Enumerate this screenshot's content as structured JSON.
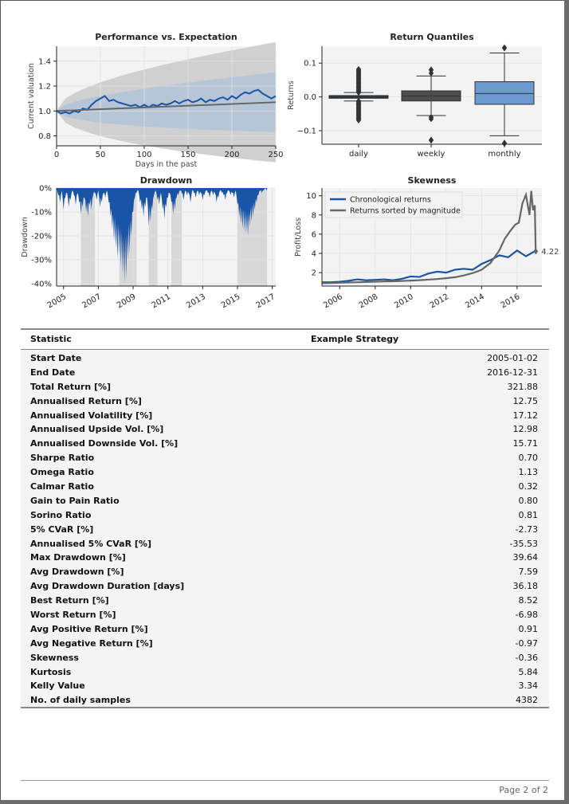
{
  "chart_data": [
    {
      "type": "line",
      "title": "Performance vs. Expectation",
      "xlabel": "Days in the past",
      "ylabel": "Current valuation",
      "xlim": [
        0,
        250
      ],
      "ylim": [
        0.72,
        1.52
      ],
      "x_ticks": [
        "0",
        "50",
        "100",
        "150",
        "200",
        "250"
      ],
      "y_ticks": [
        "0.8",
        "1.0",
        "1.2",
        "1.4"
      ],
      "series": [
        {
          "values_x": [
            0,
            5,
            10,
            15,
            20,
            25,
            30,
            35,
            40,
            45,
            50,
            55,
            60,
            65,
            70,
            75,
            80,
            85,
            90,
            95,
            100,
            105,
            110,
            115,
            120,
            125,
            130,
            135,
            140,
            145,
            150,
            155,
            160,
            165,
            170,
            175,
            180,
            185,
            190,
            195,
            200,
            205,
            210,
            215,
            220,
            225,
            230,
            235,
            240,
            245,
            250
          ],
          "values": [
            1.0,
            0.98,
            0.99,
            0.98,
            1.0,
            0.99,
            1.02,
            1.01,
            1.05,
            1.08,
            1.1,
            1.12,
            1.08,
            1.09,
            1.07,
            1.06,
            1.05,
            1.04,
            1.05,
            1.03,
            1.05,
            1.03,
            1.05,
            1.04,
            1.06,
            1.05,
            1.06,
            1.08,
            1.06,
            1.08,
            1.09,
            1.07,
            1.08,
            1.1,
            1.07,
            1.09,
            1.08,
            1.1,
            1.11,
            1.09,
            1.12,
            1.1,
            1.13,
            1.15,
            1.14,
            1.16,
            1.17,
            1.14,
            1.12,
            1.1,
            1.12
          ]
        },
        {
          "values_x": [
            0,
            250
          ],
          "values": [
            1.0,
            1.07
          ]
        }
      ],
      "grid": true
    },
    {
      "type": "box",
      "title": "Return Quantiles",
      "ylabel": "Returns",
      "categories": [
        "daily",
        "weekly",
        "monthly"
      ],
      "y_ticks": [
        "−0.1",
        "0.0",
        "0.1"
      ],
      "ylim": [
        -0.14,
        0.15
      ],
      "boxes": [
        {
          "whisker_low": -0.012,
          "q1": -0.004,
          "median": 0.0,
          "q3": 0.004,
          "whisker_high": 0.013,
          "outliers": [
            0.085,
            -0.07
          ],
          "color": "#2b3a55"
        },
        {
          "whisker_low": -0.055,
          "q1": -0.012,
          "median": 0.003,
          "q3": 0.018,
          "whisker_high": 0.062,
          "outliers": [
            0.08,
            -0.128
          ],
          "color": "#4d4d4d"
        },
        {
          "whisker_low": -0.115,
          "q1": -0.022,
          "median": 0.01,
          "q3": 0.045,
          "whisker_high": 0.13,
          "outliers": [
            0.145,
            -0.137
          ],
          "color": "#6a9bd0"
        }
      ],
      "grid": true
    },
    {
      "type": "area",
      "title": "Drawdown",
      "ylabel": "Drawdown",
      "x_ticks": [
        "2005",
        "2007",
        "2009",
        "2011",
        "2013",
        "2015",
        "2017"
      ],
      "y_ticks": [
        "0%",
        "-10%",
        "-20%",
        "-30%",
        "-40%"
      ],
      "xlim": [
        2005,
        2017.6
      ],
      "ylim": [
        -41,
        0
      ],
      "shaded_periods": [
        [
          2006.4,
          2007.2
        ],
        [
          2008.6,
          2009.6
        ],
        [
          2010.3,
          2010.8
        ],
        [
          2011.6,
          2012.2
        ],
        [
          2015.4,
          2017.1
        ]
      ],
      "x": [
        2005,
        2005.1,
        2005.2,
        2005.3,
        2005.4,
        2005.5,
        2005.6,
        2005.7,
        2005.8,
        2005.9,
        2006,
        2006.1,
        2006.2,
        2006.3,
        2006.4,
        2006.5,
        2006.6,
        2006.7,
        2006.8,
        2006.9,
        2007,
        2007.1,
        2007.2,
        2007.3,
        2007.4,
        2007.5,
        2007.6,
        2007.7,
        2007.8,
        2007.9,
        2008,
        2008.1,
        2008.2,
        2008.3,
        2008.4,
        2008.5,
        2008.6,
        2008.7,
        2008.8,
        2008.9,
        2009,
        2009.1,
        2009.2,
        2009.3,
        2009.4,
        2009.5,
        2009.6,
        2009.7,
        2009.8,
        2009.9,
        2010,
        2010.1,
        2010.2,
        2010.3,
        2010.4,
        2010.5,
        2010.6,
        2010.7,
        2010.8,
        2010.9,
        2011,
        2011.1,
        2011.2,
        2011.3,
        2011.4,
        2011.5,
        2011.6,
        2011.7,
        2011.8,
        2011.9,
        2012,
        2012.1,
        2012.2,
        2012.3,
        2012.4,
        2012.5,
        2012.6,
        2012.7,
        2012.8,
        2012.9,
        2013,
        2013.1,
        2013.2,
        2013.3,
        2013.4,
        2013.5,
        2013.6,
        2013.7,
        2013.8,
        2013.9,
        2014,
        2014.1,
        2014.2,
        2014.3,
        2014.4,
        2014.5,
        2014.6,
        2014.7,
        2014.8,
        2014.9,
        2015,
        2015.1,
        2015.2,
        2015.3,
        2015.4,
        2015.5,
        2015.6,
        2015.7,
        2015.8,
        2015.9,
        2016,
        2016.1,
        2016.2,
        2016.3,
        2016.4,
        2016.5,
        2016.6,
        2016.7,
        2016.8,
        2016.9,
        2017,
        2017.1
      ],
      "values": [
        0,
        -3,
        -6,
        -1,
        -9,
        -4,
        -2,
        -8,
        -5,
        -1,
        -3,
        -7,
        -2,
        -6,
        -11,
        -8,
        -4,
        -10,
        -12,
        -7,
        -9,
        -3,
        -2,
        -5,
        -1,
        -8,
        -6,
        -2,
        -4,
        -1,
        -6,
        -12,
        -17,
        -22,
        -25,
        -30,
        -28,
        -33,
        -36,
        -40,
        -38,
        -30,
        -27,
        -20,
        -10,
        -4,
        -2,
        -1,
        -6,
        -9,
        -12,
        -8,
        -4,
        -16,
        -14,
        -9,
        -3,
        -1,
        -5,
        -7,
        -2,
        -9,
        -13,
        -8,
        -4,
        -2,
        -6,
        -11,
        -9,
        -4,
        -3,
        -1,
        -2,
        -5,
        -1,
        -3,
        -2,
        -6,
        -1,
        -2,
        -4,
        -1,
        -3,
        -2,
        -5,
        -3,
        -1,
        -2,
        -4,
        -1,
        -3,
        -2,
        -6,
        -4,
        -1,
        -2,
        -3,
        -5,
        -2,
        -1,
        -3,
        -2,
        -4,
        -1,
        -7,
        -12,
        -15,
        -17,
        -18,
        -19,
        -20,
        -16,
        -14,
        -12,
        -9,
        -6,
        -3,
        -1,
        -2,
        -1,
        0,
        -1
      ]
    },
    {
      "type": "line",
      "title": "Skewness",
      "ylabel": "Profit/Loss",
      "x_ticks": [
        "2006",
        "2008",
        "2010",
        "2012",
        "2014",
        "2016"
      ],
      "y_ticks": [
        "2",
        "4",
        "6",
        "8",
        "10"
      ],
      "xlim": [
        2005,
        2017.4
      ],
      "ylim": [
        0.6,
        10.8
      ],
      "legend": "top-left",
      "annotation": "4.22",
      "series": [
        {
          "name": "Chronological returns",
          "color": "#1a54a6",
          "x": [
            2005,
            2005.5,
            2006,
            2006.5,
            2007,
            2007.5,
            2008,
            2008.5,
            2009,
            2009.5,
            2010,
            2010.5,
            2011,
            2011.5,
            2012,
            2012.5,
            2013,
            2013.5,
            2014,
            2014.5,
            2015,
            2015.5,
            2016,
            2016.5,
            2017
          ],
          "values": [
            1.0,
            1.0,
            1.05,
            1.15,
            1.3,
            1.2,
            1.25,
            1.3,
            1.2,
            1.35,
            1.6,
            1.55,
            1.9,
            2.1,
            2.0,
            2.3,
            2.4,
            2.3,
            2.9,
            3.3,
            3.8,
            3.6,
            4.3,
            3.7,
            4.22
          ]
        },
        {
          "name": "Returns sorted by magnitude",
          "color": "#666666",
          "x": [
            2005,
            2005.5,
            2006,
            2006.5,
            2007,
            2007.5,
            2008,
            2008.5,
            2009,
            2009.5,
            2010,
            2010.5,
            2011,
            2011.5,
            2012,
            2012.5,
            2013,
            2013.5,
            2014,
            2014.5,
            2015,
            2015.3,
            2015.6,
            2015.9,
            2016.1,
            2016.3,
            2016.5,
            2016.7,
            2016.8,
            2016.9,
            2017,
            2017.05
          ],
          "values": [
            0.9,
            0.92,
            0.95,
            0.97,
            1.0,
            1.02,
            1.05,
            1.08,
            1.1,
            1.13,
            1.17,
            1.21,
            1.27,
            1.33,
            1.42,
            1.52,
            1.7,
            1.95,
            2.3,
            3.0,
            4.3,
            5.5,
            6.3,
            7.0,
            7.2,
            9.2,
            10.1,
            8.0,
            10.5,
            8.5,
            9.0,
            4.22
          ]
        }
      ]
    }
  ],
  "stats": {
    "header_label": "Statistic",
    "header_strategy": "Example Strategy",
    "rows": [
      {
        "label": "Start Date",
        "value": "2005-01-02"
      },
      {
        "label": "End Date",
        "value": "2016-12-31"
      },
      {
        "label": "Total Return [%]",
        "value": "321.88"
      },
      {
        "label": "Annualised Return [%]",
        "value": "12.75"
      },
      {
        "label": "Annualised Volatility [%]",
        "value": "17.12"
      },
      {
        "label": "Annualised Upside Vol. [%]",
        "value": "12.98"
      },
      {
        "label": "Annualised Downside Vol. [%]",
        "value": "15.71"
      },
      {
        "label": "Sharpe Ratio",
        "value": "0.70"
      },
      {
        "label": "Omega Ratio",
        "value": "1.13"
      },
      {
        "label": "Calmar Ratio",
        "value": "0.32"
      },
      {
        "label": "Gain to Pain Ratio",
        "value": "0.80"
      },
      {
        "label": "Sorino Ratio",
        "value": "0.81"
      },
      {
        "label": "5% CVaR [%]",
        "value": "-2.73"
      },
      {
        "label": "Annualised 5% CVaR [%]",
        "value": "-35.53"
      },
      {
        "label": "Max Drawdown [%]",
        "value": "39.64"
      },
      {
        "label": "Avg Drawdown [%]",
        "value": "7.59"
      },
      {
        "label": "Avg Drawdown Duration [days]",
        "value": "36.18"
      },
      {
        "label": "Best Return [%]",
        "value": "8.52"
      },
      {
        "label": "Worst Return [%]",
        "value": "-6.98"
      },
      {
        "label": "Avg Positive Return [%]",
        "value": "0.91"
      },
      {
        "label": "Avg Negative Return [%]",
        "value": "-0.97"
      },
      {
        "label": "Skewness",
        "value": "-0.36"
      },
      {
        "label": "Kurtosis",
        "value": "5.84"
      },
      {
        "label": "Kelly Value",
        "value": "3.34"
      },
      {
        "label": "No. of daily samples",
        "value": "4382"
      }
    ]
  },
  "footer": {
    "page_label": "Page 2 of 2"
  }
}
